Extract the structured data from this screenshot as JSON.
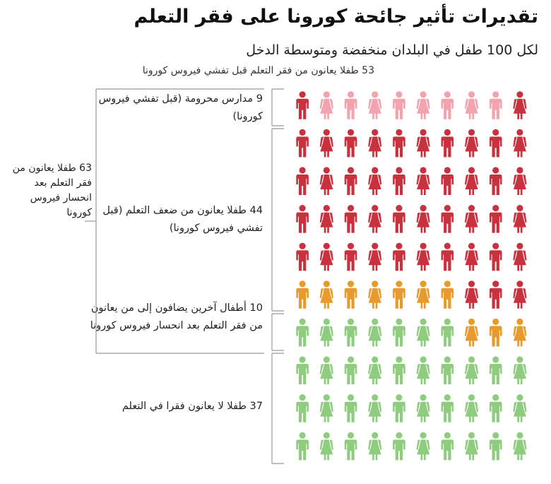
{
  "header": {
    "title": "تقديرات تأثير جائحة كورونا على فقر التعلم",
    "subtitle": "لكل 100 طفل في البلدان منخفضة ومتوسطة الدخل",
    "note": "53 طفلا يعانون من فقر التعلم قبل تفشي فيروس كورونا"
  },
  "labels": {
    "schools": "9 مدارس محرومة (قبل تفشي فيروس كورونا)",
    "poverty": "44 طفلا يعانون من ضعف التعلم (قبل تفشي فيروس كورونا)",
    "added": "10 أطفال آخرين يضافون إلى من يعانون من فقر التعلم بعد انحسار فيروس كورونا",
    "none": "37 طفلا لا يعانون فقرا في التعلم",
    "total": "63 طفلا يعانون من فقر التعلم بعد انحسار فيروس كورونا"
  },
  "chart_data": {
    "type": "waffle",
    "total": 100,
    "rows": 10,
    "cols": 10,
    "fill_order": "right-to-left, top-to-bottom",
    "series": [
      {
        "name": "9 مدارس محرومة (قبل تفشي فيروس كورونا)",
        "value": 9,
        "color": "#f2a3ae"
      },
      {
        "name": "44 طفلا يعانون من ضعف التعلم (قبل تفشي فيروس كورونا)",
        "value": 44,
        "color": "#c8323f"
      },
      {
        "name": "10 أطفال آخرين يضافون إلى من يعانون من فقر التعلم بعد انحسار فيروس كورونا",
        "value": 10,
        "color": "#e89b2c"
      },
      {
        "name": "37 طفلا لا يعانون فقرا في التعلم",
        "value": 37,
        "color": "#8fcc80"
      }
    ],
    "first_icon_color": "#c8323f",
    "icon_pattern": [
      "girl",
      "boy"
    ],
    "bracket_color": "#999999"
  }
}
